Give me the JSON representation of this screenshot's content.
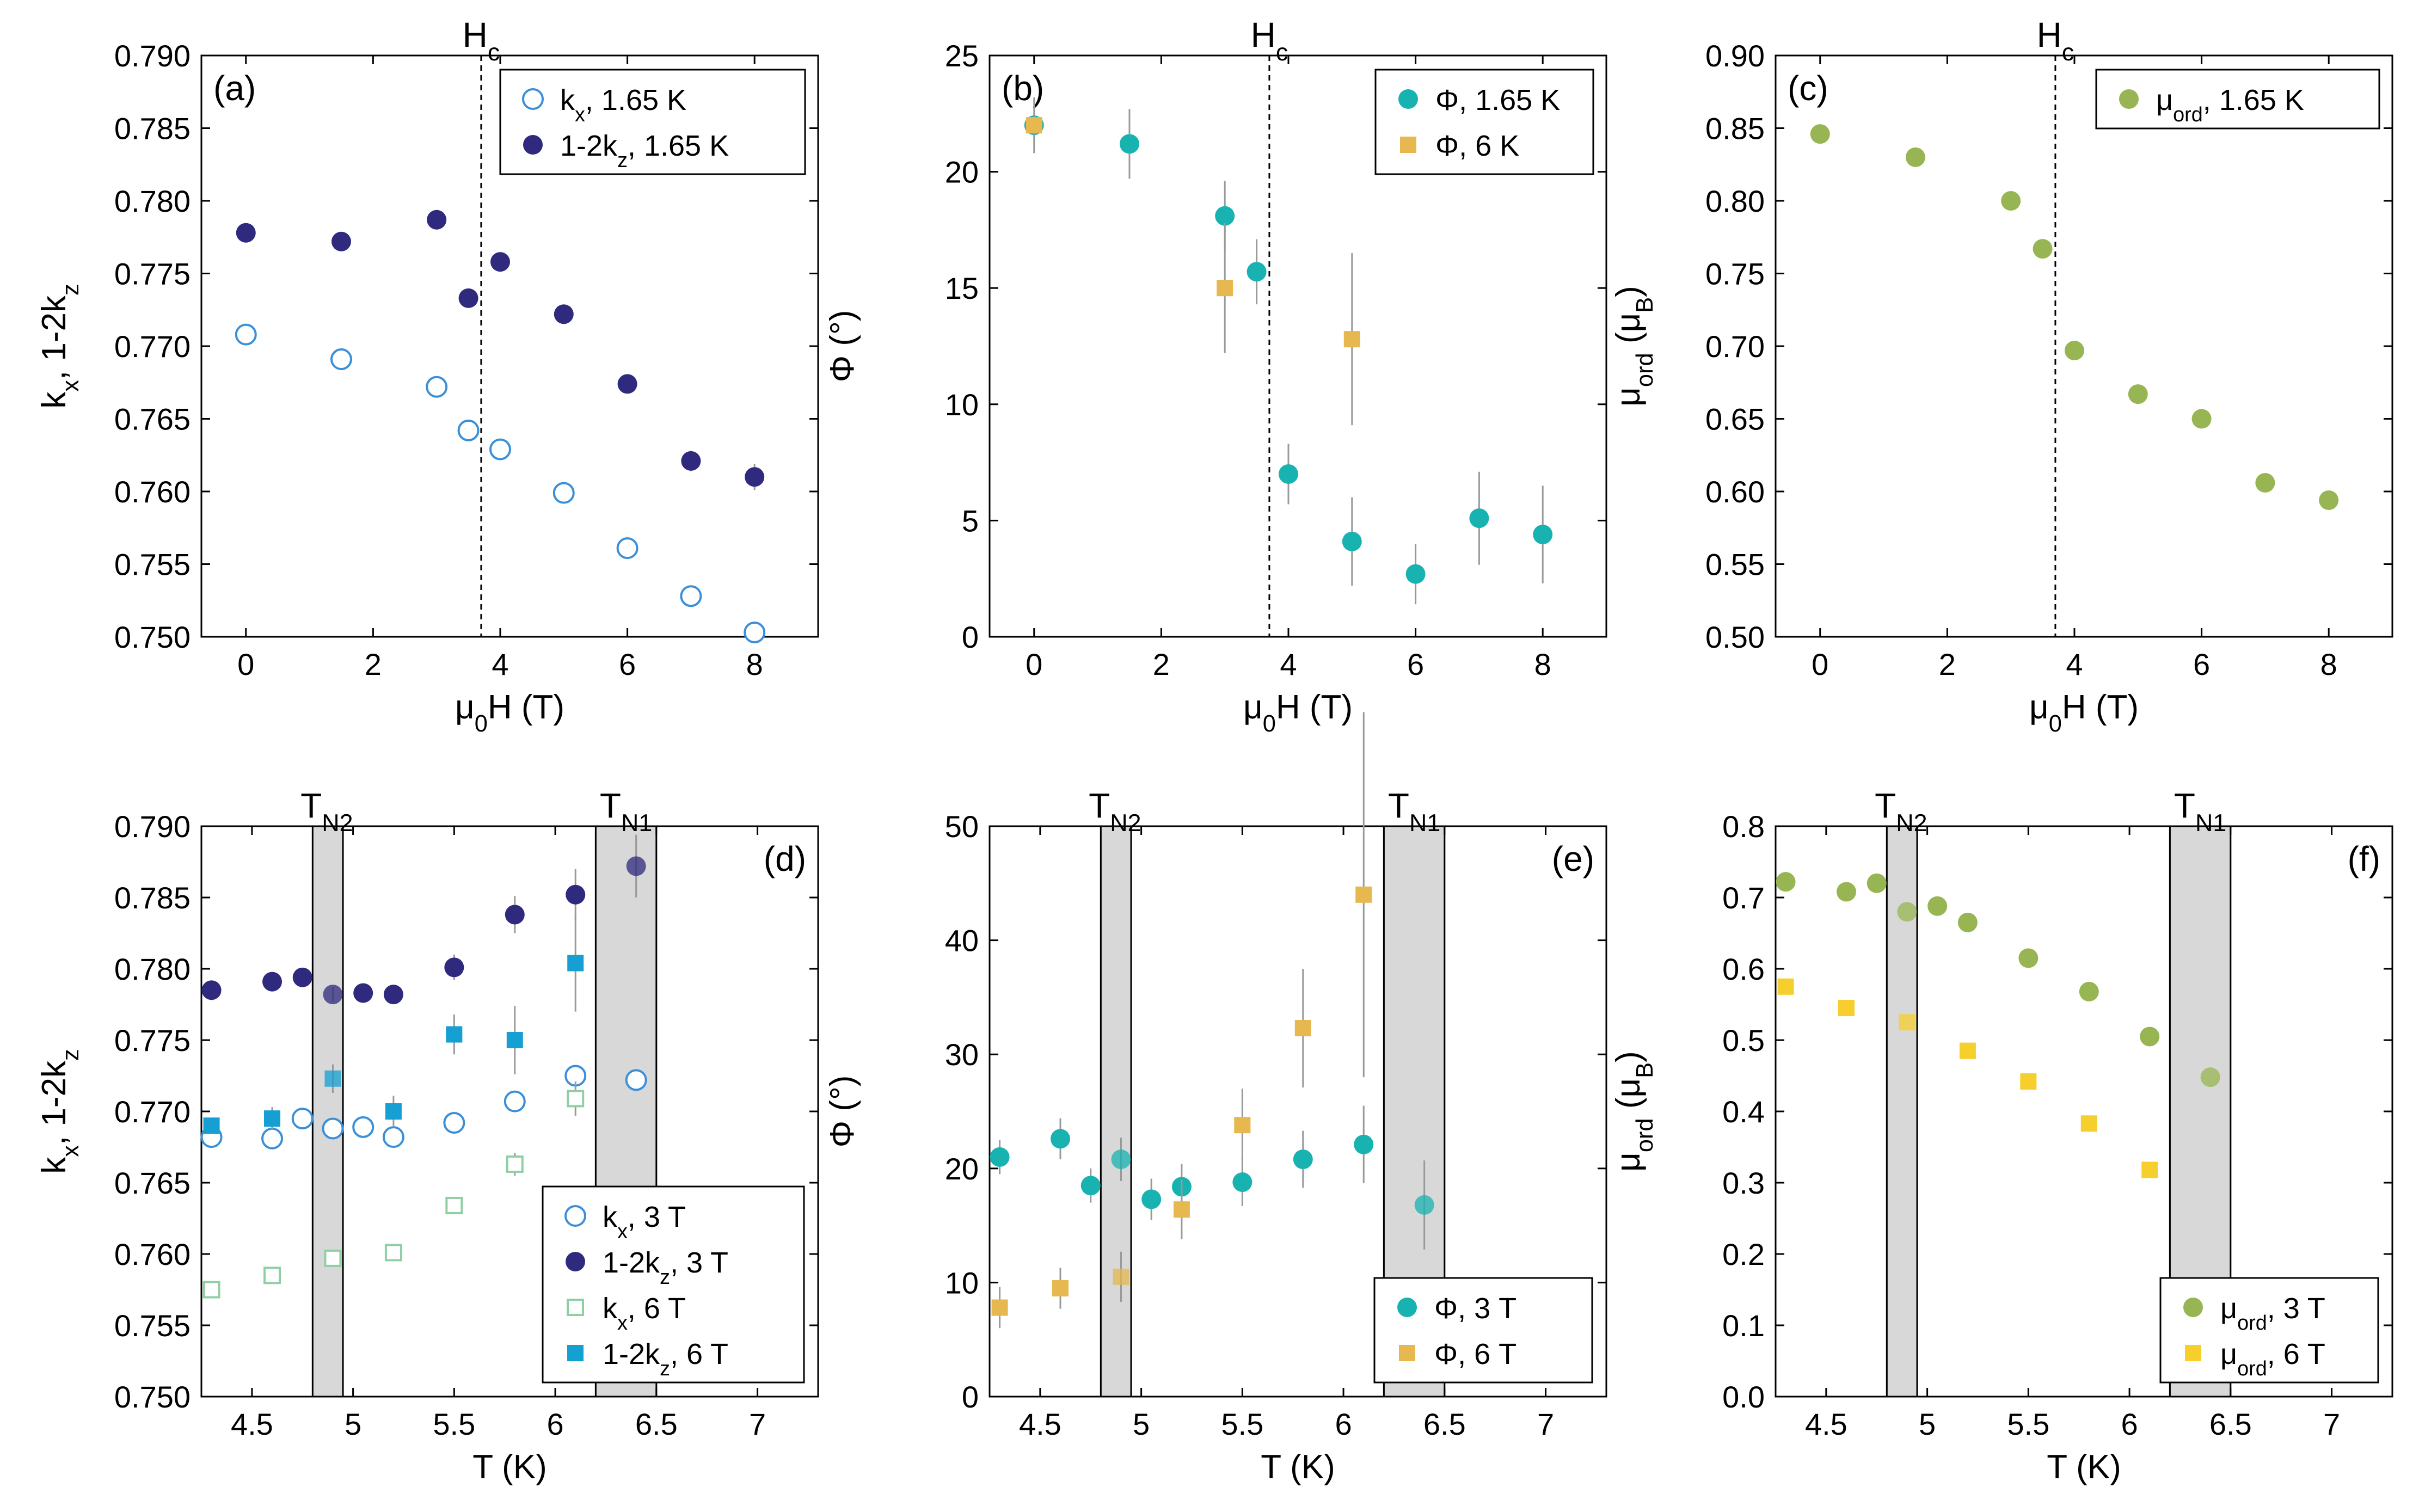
{
  "figure": {
    "colors": {
      "navy": "#2f2a7e",
      "light_blue": "#3b8fd9",
      "teal": "#18b3b0",
      "gold": "#e6b84f",
      "olive": "#97b552",
      "yellow": "#f7cf2d",
      "cyan": "#159fd3",
      "light_green": "#8fcfa4",
      "gray_band": "#d8d8d8",
      "error_bar": "#999999"
    }
  },
  "chart_data": [
    {
      "id": "a",
      "panel_label": "(a)",
      "type": "scatter",
      "xlabel": "μ0H (T)",
      "ylabel": "kx, 1-2kz",
      "xlim": [
        -0.7,
        9.0
      ],
      "ylim": [
        0.75,
        0.79
      ],
      "xticks": [
        0,
        2,
        4,
        6,
        8
      ],
      "yticks": [
        0.75,
        0.755,
        0.76,
        0.765,
        0.77,
        0.775,
        0.78,
        0.785,
        0.79
      ],
      "top_marks": [
        {
          "value": 3.7,
          "main": "H",
          "sub": "c"
        }
      ],
      "vlines": [
        3.7
      ],
      "series": [
        {
          "name": "kx, 1.65 K",
          "marker": "circle-open",
          "color": "#3b8fd9",
          "x": [
            0,
            1.5,
            3,
            3.5,
            4,
            5,
            6,
            7,
            8
          ],
          "y": [
            0.7708,
            0.7691,
            0.7672,
            0.7642,
            0.7629,
            0.7599,
            0.7561,
            0.7528,
            0.7503
          ],
          "err": [
            0.0003,
            0.0003,
            0.0003,
            0.0003,
            0.0003,
            0.0003,
            0.0003,
            0.0003,
            0.0003
          ]
        },
        {
          "name": "1-2kz, 1.65 K",
          "marker": "circle-filled",
          "color": "#2f2a7e",
          "x": [
            0,
            1.5,
            3,
            3.5,
            4,
            5,
            6,
            7,
            8
          ],
          "y": [
            0.7778,
            0.7772,
            0.7787,
            0.7733,
            0.7758,
            0.7722,
            0.7674,
            0.7621,
            0.761
          ],
          "err": [
            0.0004,
            0.0004,
            0.0004,
            0.0004,
            0.0004,
            0.0006,
            0.0006,
            0.0007,
            0.0009
          ]
        }
      ],
      "legend": {
        "position": "top-right"
      }
    },
    {
      "id": "b",
      "panel_label": "(b)",
      "type": "scatter",
      "xlabel": "μ0H (T)",
      "ylabel": "Φ (°)",
      "xlim": [
        -0.7,
        9.0
      ],
      "ylim": [
        0,
        25
      ],
      "xticks": [
        0,
        2,
        4,
        6,
        8
      ],
      "yticks": [
        0,
        5,
        10,
        15,
        20,
        25
      ],
      "top_marks": [
        {
          "value": 3.7,
          "main": "H",
          "sub": "c"
        }
      ],
      "vlines": [
        3.7
      ],
      "series": [
        {
          "name": "Φ, 1.65 K",
          "marker": "circle-filled",
          "color": "#18b3b0",
          "x": [
            0,
            1.5,
            3,
            3.5,
            4,
            5,
            6,
            7,
            8
          ],
          "y": [
            22.0,
            21.2,
            18.1,
            15.7,
            7.0,
            4.1,
            2.7,
            5.1,
            4.4
          ],
          "err": [
            1.2,
            1.5,
            1.5,
            1.4,
            1.3,
            1.9,
            1.3,
            2.0,
            2.1
          ]
        },
        {
          "name": "Φ, 6 K",
          "marker": "square-filled",
          "color": "#e6b84f",
          "x": [
            0,
            3,
            5
          ],
          "y": [
            22.0,
            15.0,
            12.8
          ],
          "err": [
            0.4,
            2.8,
            3.7
          ]
        }
      ],
      "legend": {
        "position": "top-right"
      }
    },
    {
      "id": "c",
      "panel_label": "(c)",
      "type": "scatter",
      "xlabel": "μ0H (T)",
      "ylabel": "μord (μB)",
      "xlim": [
        -0.7,
        9.0
      ],
      "ylim": [
        0.5,
        0.9
      ],
      "xticks": [
        0,
        2,
        4,
        6,
        8
      ],
      "yticks": [
        0.5,
        0.55,
        0.6,
        0.65,
        0.7,
        0.75,
        0.8,
        0.85,
        0.9
      ],
      "top_marks": [
        {
          "value": 3.7,
          "main": "H",
          "sub": "c"
        }
      ],
      "vlines": [
        3.7
      ],
      "series": [
        {
          "name": "μord, 1.65 K",
          "marker": "circle-filled",
          "color": "#97b552",
          "x": [
            0,
            1.5,
            3,
            3.5,
            4,
            5,
            6,
            7,
            8
          ],
          "y": [
            0.846,
            0.83,
            0.8,
            0.767,
            0.697,
            0.667,
            0.65,
            0.606,
            0.594
          ],
          "err": [
            0,
            0,
            0,
            0,
            0,
            0,
            0,
            0,
            0
          ]
        }
      ],
      "legend": {
        "position": "top-right"
      }
    },
    {
      "id": "d",
      "panel_label": "(d)",
      "type": "scatter",
      "xlabel": "T (K)",
      "ylabel": "kx, 1-2kz",
      "xlim": [
        4.25,
        7.3
      ],
      "ylim": [
        0.75,
        0.79
      ],
      "xticks": [
        4.5,
        5,
        5.5,
        6,
        6.5,
        7
      ],
      "xticklabels": [
        "4.5",
        "5",
        "5.5",
        "6",
        "6.5",
        "7"
      ],
      "yticks": [
        0.75,
        0.755,
        0.76,
        0.765,
        0.77,
        0.775,
        0.78,
        0.785,
        0.79
      ],
      "top_marks": [
        {
          "value": 4.87,
          "main": "T",
          "sub": "N2"
        },
        {
          "value": 6.35,
          "main": "T",
          "sub": "N1"
        }
      ],
      "bands": [
        [
          4.8,
          4.95
        ],
        [
          6.2,
          6.5
        ]
      ],
      "series": [
        {
          "name": "kx, 3 T",
          "marker": "circle-open",
          "color": "#3b8fd9",
          "x": [
            4.3,
            4.6,
            4.75,
            4.9,
            5.05,
            5.2,
            5.5,
            5.8,
            6.1,
            6.4
          ],
          "y": [
            0.7682,
            0.7681,
            0.7695,
            0.7688,
            0.7689,
            0.7682,
            0.7692,
            0.7707,
            0.7725,
            0.7722
          ],
          "err": [
            0.0003,
            0.0003,
            0.0003,
            0.0003,
            0.0003,
            0.0003,
            0.0003,
            0.0003,
            0.0005,
            0.0006
          ]
        },
        {
          "name": "1-2kz, 3 T",
          "marker": "circle-filled",
          "color": "#2f2a7e",
          "x": [
            4.3,
            4.6,
            4.75,
            4.9,
            5.05,
            5.2,
            5.5,
            5.8,
            6.1,
            6.4
          ],
          "y": [
            0.7785,
            0.7791,
            0.7794,
            0.7782,
            0.7783,
            0.7782,
            0.7801,
            0.7838,
            0.7852,
            0.7872
          ],
          "err": [
            0.0005,
            0.0005,
            0.0005,
            0.0005,
            0.0005,
            0.0005,
            0.0009,
            0.0013,
            0.0018,
            0.0022
          ]
        },
        {
          "name": "kx, 6 T",
          "marker": "square-open",
          "color": "#8fcfa4",
          "x": [
            4.3,
            4.6,
            4.9,
            5.2,
            5.5,
            5.8,
            6.1
          ],
          "y": [
            0.7575,
            0.7585,
            0.7597,
            0.7601,
            0.7634,
            0.7663,
            0.7709
          ],
          "err": [
            0.0002,
            0.0002,
            0.0003,
            0.0004,
            0.0006,
            0.0008,
            0.0012
          ]
        },
        {
          "name": "1-2kz, 6 T",
          "marker": "square-filled",
          "color": "#159fd3",
          "x": [
            4.3,
            4.6,
            4.9,
            5.2,
            5.5,
            5.8,
            6.1
          ],
          "y": [
            0.769,
            0.7695,
            0.7723,
            0.77,
            0.7754,
            0.775,
            0.7804
          ],
          "err": [
            0.0005,
            0.0008,
            0.001,
            0.0011,
            0.0014,
            0.0024,
            0.0034
          ]
        }
      ],
      "legend": {
        "position": "bottom-right"
      }
    },
    {
      "id": "e",
      "panel_label": "(e)",
      "type": "scatter",
      "xlabel": "T (K)",
      "ylabel": "Φ (°)",
      "xlim": [
        4.25,
        7.3
      ],
      "ylim": [
        0,
        50
      ],
      "xticks": [
        4.5,
        5,
        5.5,
        6,
        6.5,
        7
      ],
      "xticklabels": [
        "4.5",
        "5",
        "5.5",
        "6",
        "6.5",
        "7"
      ],
      "yticks": [
        0,
        10,
        20,
        30,
        40,
        50
      ],
      "top_marks": [
        {
          "value": 4.87,
          "main": "T",
          "sub": "N2"
        },
        {
          "value": 6.35,
          "main": "T",
          "sub": "N1"
        }
      ],
      "bands": [
        [
          4.8,
          4.95
        ],
        [
          6.2,
          6.5
        ]
      ],
      "series": [
        {
          "name": "Φ, 3 T",
          "marker": "circle-filled",
          "color": "#18b3b0",
          "x": [
            4.3,
            4.6,
            4.75,
            4.9,
            5.05,
            5.2,
            5.5,
            5.8,
            6.1,
            6.4
          ],
          "y": [
            21.0,
            22.6,
            18.5,
            20.8,
            17.3,
            18.4,
            18.8,
            20.8,
            22.1,
            16.8
          ],
          "err": [
            1.5,
            1.8,
            1.5,
            1.9,
            1.8,
            2.0,
            2.1,
            2.5,
            3.4,
            3.9
          ]
        },
        {
          "name": "Φ, 6 T",
          "marker": "square-filled",
          "color": "#e6b84f",
          "x": [
            4.3,
            4.6,
            4.9,
            5.2,
            5.5,
            5.8,
            6.1
          ],
          "y": [
            7.8,
            9.5,
            10.5,
            16.4,
            23.8,
            32.3,
            44.0
          ],
          "err": [
            1.8,
            1.8,
            2.2,
            2.6,
            3.2,
            5.2,
            16.0
          ]
        }
      ],
      "legend": {
        "position": "bottom-right"
      }
    },
    {
      "id": "f",
      "panel_label": "(f)",
      "type": "scatter",
      "xlabel": "T (K)",
      "ylabel": "μord (μB)",
      "xlim": [
        4.25,
        7.3
      ],
      "ylim": [
        0,
        0.8
      ],
      "xticks": [
        4.5,
        5,
        5.5,
        6,
        6.5,
        7
      ],
      "xticklabels": [
        "4.5",
        "5",
        "5.5",
        "6",
        "6.5",
        "7"
      ],
      "yticks": [
        0,
        0.1,
        0.2,
        0.3,
        0.4,
        0.5,
        0.6,
        0.7,
        0.8
      ],
      "top_marks": [
        {
          "value": 4.87,
          "main": "T",
          "sub": "N2"
        },
        {
          "value": 6.35,
          "main": "T",
          "sub": "N1"
        }
      ],
      "bands": [
        [
          4.8,
          4.95
        ],
        [
          6.2,
          6.5
        ]
      ],
      "series": [
        {
          "name": "μord, 3 T",
          "marker": "circle-filled",
          "color": "#97b552",
          "x": [
            4.3,
            4.6,
            4.75,
            4.9,
            5.05,
            5.2,
            5.5,
            5.8,
            6.1,
            6.4
          ],
          "y": [
            0.722,
            0.708,
            0.72,
            0.68,
            0.688,
            0.665,
            0.615,
            0.568,
            0.505,
            0.448
          ],
          "err": [
            0,
            0,
            0,
            0,
            0,
            0,
            0,
            0,
            0,
            0
          ]
        },
        {
          "name": "μord, 6 T",
          "marker": "square-filled",
          "color": "#f7cf2d",
          "x": [
            4.3,
            4.6,
            4.9,
            5.2,
            5.5,
            5.8,
            6.1
          ],
          "y": [
            0.575,
            0.545,
            0.525,
            0.485,
            0.442,
            0.383,
            0.318
          ],
          "err": [
            0,
            0,
            0,
            0,
            0,
            0,
            0
          ]
        }
      ],
      "legend": {
        "position": "bottom-right"
      }
    }
  ]
}
